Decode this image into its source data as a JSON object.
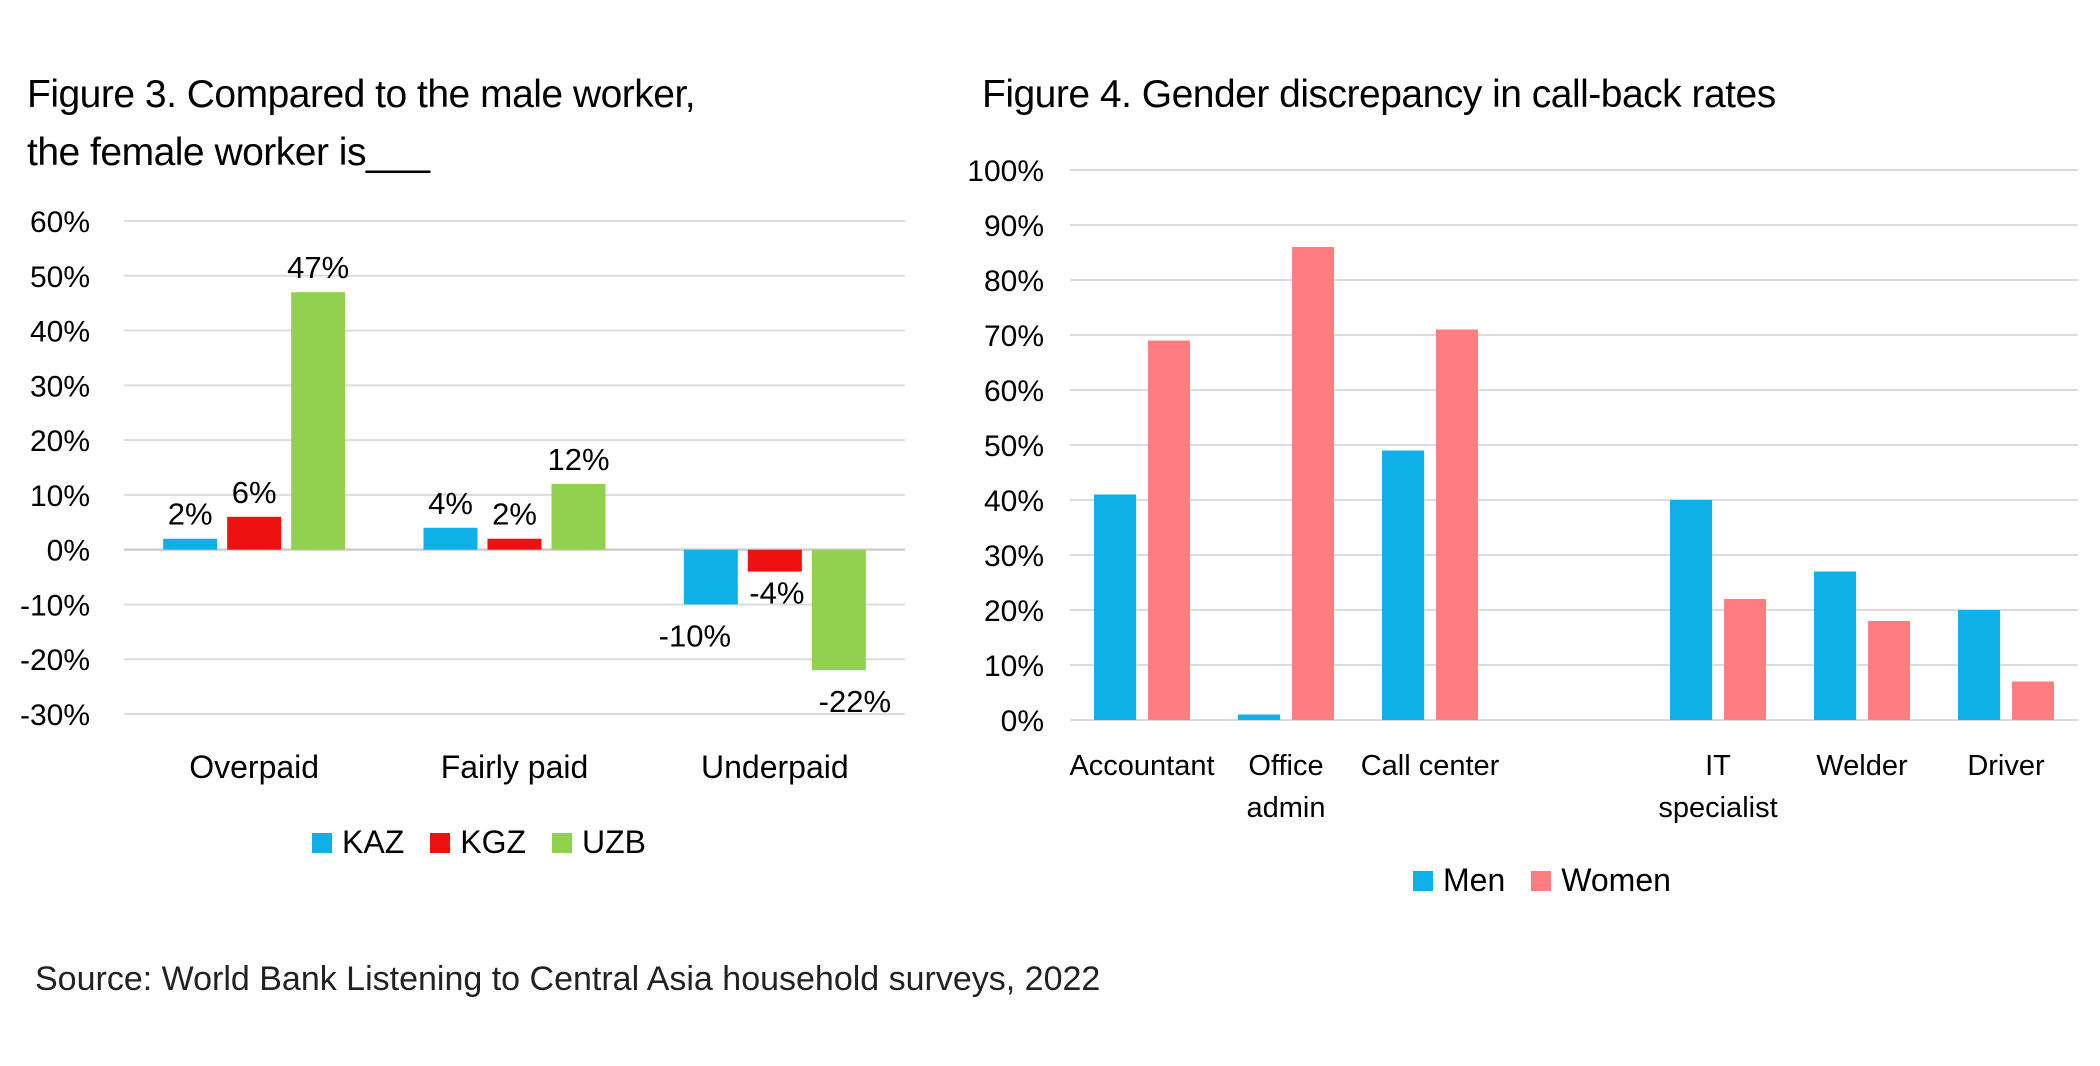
{
  "source": "Source: World Bank Listening to Central Asia household surveys, 2022",
  "chart_data": [
    {
      "type": "bar",
      "title_lines": [
        "Figure 3. Compared to the male worker,",
        "the female worker is___"
      ],
      "categories": [
        "Overpaid",
        "Fairly paid",
        "Underpaid"
      ],
      "series": [
        {
          "name": "KAZ",
          "color": "#0fb0e8",
          "values": [
            2,
            4,
            -10
          ],
          "labels": [
            "2%",
            "4%",
            "-10%"
          ]
        },
        {
          "name": "KGZ",
          "color": "#ee1111",
          "values": [
            6,
            2,
            -4
          ],
          "labels": [
            "6%",
            "2%",
            "-4%"
          ]
        },
        {
          "name": "UZB",
          "color": "#92d050",
          "values": [
            47,
            12,
            -22
          ],
          "labels": [
            "47%",
            "12%",
            "-22%"
          ]
        }
      ],
      "ylim": [
        -30,
        60
      ],
      "yticks": [
        "60%",
        "50%",
        "40%",
        "30%",
        "20%",
        "10%",
        "0%",
        "-10%",
        "-20%",
        "-30%"
      ],
      "grid": true,
      "legend": "bottom"
    },
    {
      "type": "bar",
      "title": "Figure 4. Gender discrepancy in call-back rates",
      "categories": [
        [
          "Accountant"
        ],
        [
          "Office",
          "admin"
        ],
        [
          "Call center"
        ],
        [],
        [
          "IT",
          "specialist"
        ],
        [
          "Welder"
        ],
        [
          "Driver"
        ]
      ],
      "series": [
        {
          "name": "Men",
          "color": "#0fb0e8",
          "values": [
            41,
            1,
            49,
            null,
            40,
            27,
            20
          ]
        },
        {
          "name": "Women",
          "color": "#ff7c80",
          "values": [
            69,
            86,
            71,
            null,
            22,
            18,
            7
          ]
        }
      ],
      "ylim": [
        0,
        100
      ],
      "yticks": [
        "100%",
        "90%",
        "80%",
        "70%",
        "60%",
        "50%",
        "40%",
        "30%",
        "20%",
        "10%",
        "0%"
      ],
      "grid": true,
      "legend": "bottom"
    }
  ]
}
